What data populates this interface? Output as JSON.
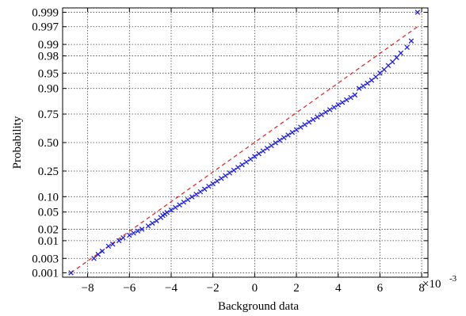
{
  "chart_data": {
    "type": "scatter",
    "title": "",
    "xlabel": "Background data",
    "ylabel": "Probability",
    "x_scale_label": "×10",
    "x_scale_exponent": "-3",
    "xlim": [
      -9.2,
      8.3
    ],
    "x_ticks": [
      -8,
      -6,
      -4,
      -2,
      0,
      2,
      4,
      6,
      8
    ],
    "x_tick_labels": [
      "−8",
      "−6",
      "−4",
      "−2",
      "0",
      "2",
      "4",
      "6",
      "8"
    ],
    "y_scale": "normal-probability",
    "ylim": [
      0.0007,
      0.9993
    ],
    "y_ticks": [
      0.001,
      0.003,
      0.01,
      0.02,
      0.05,
      0.1,
      0.25,
      0.5,
      0.75,
      0.9,
      0.95,
      0.98,
      0.99,
      0.997,
      0.999
    ],
    "y_tick_labels": [
      "0.001",
      "0.003",
      "0.01",
      "0.02",
      "0.05",
      "0.10",
      "0.25",
      "0.50",
      "0.75",
      "0.90",
      "0.95",
      "0.98",
      "0.99",
      "0.997",
      "0.999"
    ],
    "grid": true,
    "marker": "x",
    "series": [
      {
        "marker_color": "#1f1fd6",
        "points": [
          [
            -8.8,
            0.001
          ],
          [
            -7.7,
            0.003
          ],
          [
            -7.5,
            0.004
          ],
          [
            -7.3,
            0.005
          ],
          [
            -7.0,
            0.007
          ],
          [
            -6.8,
            0.008
          ],
          [
            -6.5,
            0.01
          ],
          [
            -6.3,
            0.012
          ],
          [
            -6.0,
            0.014
          ],
          [
            -5.8,
            0.016
          ],
          [
            -5.6,
            0.018
          ],
          [
            -5.4,
            0.02
          ],
          [
            -5.1,
            0.024
          ],
          [
            -4.9,
            0.028
          ],
          [
            -4.7,
            0.032
          ],
          [
            -4.5,
            0.038
          ],
          [
            -4.4,
            0.042
          ],
          [
            -4.3,
            0.045
          ],
          [
            -4.2,
            0.049
          ],
          [
            -4.0,
            0.055
          ],
          [
            -3.8,
            0.062
          ],
          [
            -3.6,
            0.07
          ],
          [
            -3.4,
            0.079
          ],
          [
            -3.2,
            0.088
          ],
          [
            -3.0,
            0.099
          ],
          [
            -2.8,
            0.11
          ],
          [
            -2.6,
            0.122
          ],
          [
            -2.4,
            0.135
          ],
          [
            -2.2,
            0.15
          ],
          [
            -2.0,
            0.165
          ],
          [
            -1.8,
            0.181
          ],
          [
            -1.6,
            0.198
          ],
          [
            -1.4,
            0.216
          ],
          [
            -1.2,
            0.236
          ],
          [
            -1.0,
            0.256
          ],
          [
            -0.8,
            0.278
          ],
          [
            -0.6,
            0.3
          ],
          [
            -0.4,
            0.323
          ],
          [
            -0.2,
            0.347
          ],
          [
            0.0,
            0.371
          ],
          [
            0.2,
            0.396
          ],
          [
            0.4,
            0.421
          ],
          [
            0.6,
            0.446
          ],
          [
            0.8,
            0.471
          ],
          [
            1.0,
            0.497
          ],
          [
            1.2,
            0.522
          ],
          [
            1.4,
            0.547
          ],
          [
            1.6,
            0.571
          ],
          [
            1.8,
            0.595
          ],
          [
            2.0,
            0.619
          ],
          [
            2.2,
            0.642
          ],
          [
            2.4,
            0.664
          ],
          [
            2.6,
            0.686
          ],
          [
            2.8,
            0.707
          ],
          [
            3.0,
            0.727
          ],
          [
            3.2,
            0.746
          ],
          [
            3.4,
            0.764
          ],
          [
            3.6,
            0.782
          ],
          [
            3.8,
            0.798
          ],
          [
            4.0,
            0.814
          ],
          [
            4.2,
            0.829
          ],
          [
            4.4,
            0.844
          ],
          [
            4.6,
            0.857
          ],
          [
            4.8,
            0.87
          ],
          [
            5.0,
            0.9
          ],
          [
            5.2,
            0.91
          ],
          [
            5.4,
            0.92
          ],
          [
            5.6,
            0.93
          ],
          [
            5.8,
            0.94
          ],
          [
            6.0,
            0.95
          ],
          [
            6.2,
            0.958
          ],
          [
            6.4,
            0.966
          ],
          [
            6.6,
            0.972
          ],
          [
            6.8,
            0.978
          ],
          [
            7.0,
            0.983
          ],
          [
            7.3,
            0.988
          ],
          [
            7.5,
            0.992
          ],
          [
            7.8,
            0.999
          ]
        ]
      }
    ],
    "reference_line": {
      "color": "#e02020",
      "style": "dashed",
      "points": [
        [
          -8.8,
          0.001
        ],
        [
          7.8,
          0.997
        ]
      ]
    }
  }
}
